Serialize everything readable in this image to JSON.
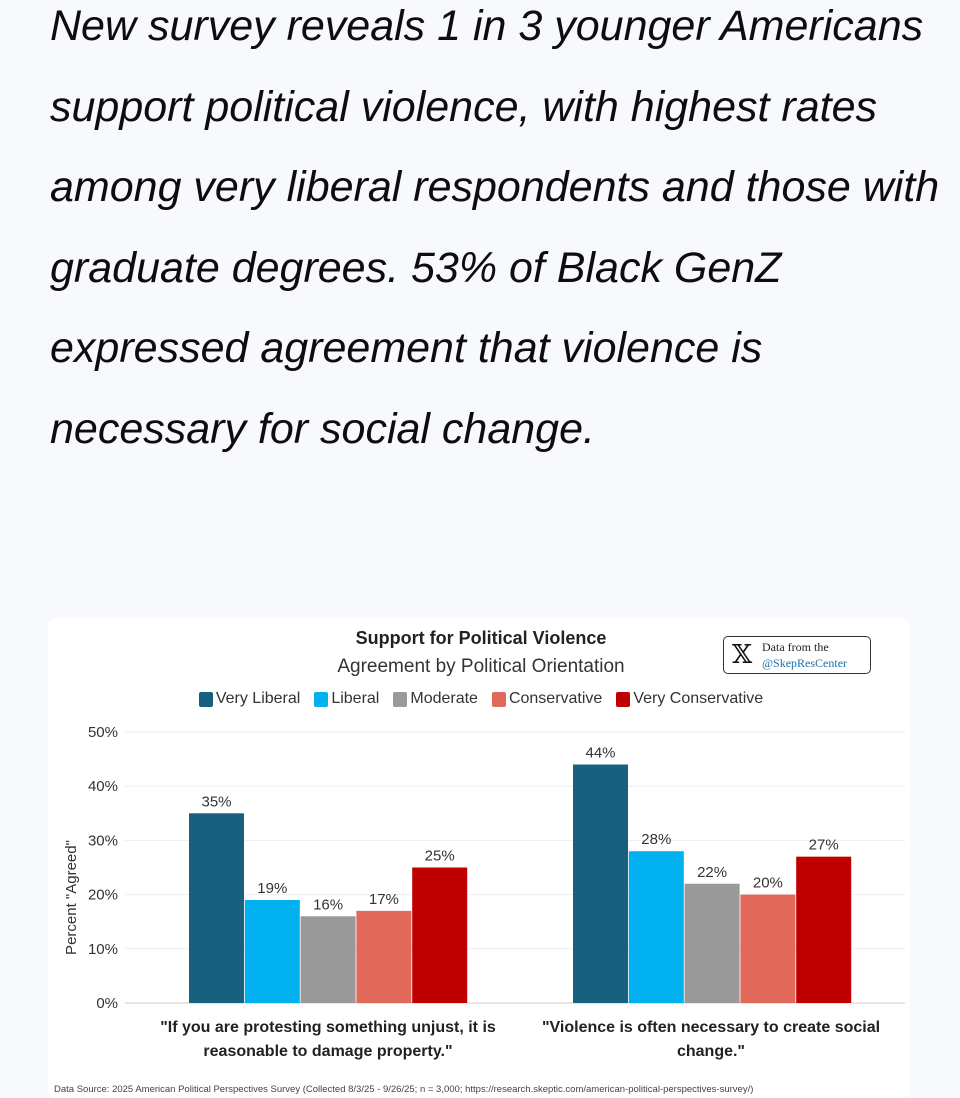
{
  "headline": "New survey reveals 1 in 3 younger Americans support political violence, with highest rates among very liberal respondents and those with graduate degrees. 53% of Black GenZ expressed agreement that violence is necessary for social change.",
  "badge": {
    "icon": "x-logo-icon",
    "line1": "Data from the",
    "line2": "@SkepResCenter"
  },
  "source": "Data Source: 2025 American Political Perspectives Survey (Collected 8/3/25 - 9/26/25; n = 3,000; https://research.skeptic.com/american-political-perspectives-survey/)",
  "chart_data": {
    "type": "bar",
    "title": "Support for Political Violence",
    "subtitle": "Agreement by Political Orientation",
    "ylabel": "Percent \"Agreed\"",
    "xlabel": "",
    "ylim": [
      0,
      50
    ],
    "yticks": [
      "0%",
      "10%",
      "20%",
      "30%",
      "40%",
      "50%"
    ],
    "grid": true,
    "legend_position": "top",
    "categories": [
      "\"If you are protesting something unjust, it is reasonable to damage property.\"",
      "\"Violence is often necessary to create social change.\""
    ],
    "series": [
      {
        "name": "Very Liberal",
        "color": "#17607f",
        "values": [
          35,
          44
        ]
      },
      {
        "name": "Liberal",
        "color": "#00b0ef",
        "values": [
          19,
          28
        ]
      },
      {
        "name": "Moderate",
        "color": "#999999",
        "values": [
          16,
          22
        ]
      },
      {
        "name": "Conservative",
        "color": "#e0695a",
        "values": [
          17,
          20
        ]
      },
      {
        "name": "Very Conservative",
        "color": "#c00000",
        "values": [
          25,
          27
        ]
      }
    ]
  }
}
